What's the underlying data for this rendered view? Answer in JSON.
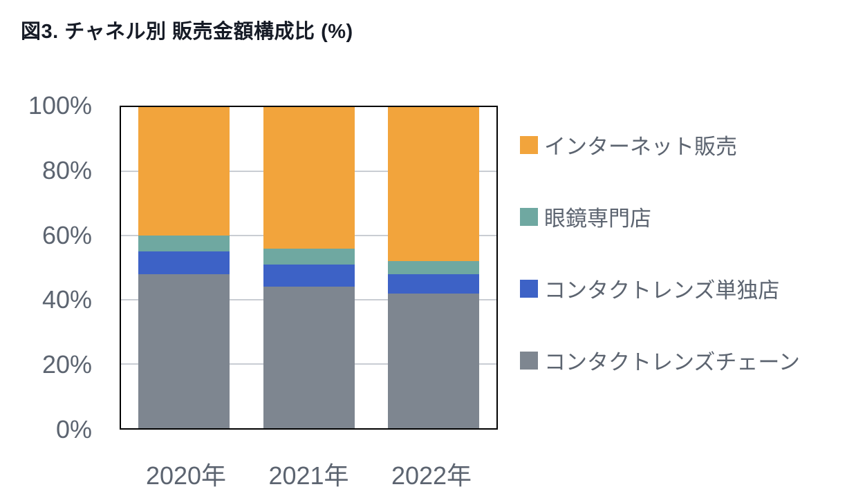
{
  "title": "図3. チャネル別 販売金額構成比 (%)",
  "chart_data": {
    "type": "bar",
    "stacked": true,
    "title": "図3. チャネル別 販売金額構成比 (%)",
    "categories": [
      "2020年",
      "2021年",
      "2022年"
    ],
    "series": [
      {
        "name": "コンタクトレンズチェーン",
        "color": "#7E8690",
        "values": [
          48,
          44,
          42
        ]
      },
      {
        "name": "コンタクトレンズ単独店",
        "color": "#3D62C6",
        "values": [
          7,
          7,
          6
        ]
      },
      {
        "name": "眼鏡専門店",
        "color": "#6FA8A1",
        "values": [
          5,
          5,
          4
        ]
      },
      {
        "name": "インターネット販売",
        "color": "#F2A43C",
        "values": [
          40,
          44,
          48
        ]
      }
    ],
    "ylim": [
      0,
      100
    ],
    "yticks_top_to_bottom": [
      "100%",
      "80%",
      "60%",
      "40%",
      "20%",
      "0%"
    ],
    "grid": true,
    "legend_position": "right",
    "legend_order_top_to_bottom": [
      "インターネット販売",
      "眼鏡専門店",
      "コンタクトレンズ単独店",
      "コンタクトレンズチェーン"
    ]
  },
  "colors": {
    "background": "#FFFFFF",
    "title_text": "#161B26",
    "axis_text": "#5C6470",
    "legend_text": "#5C6470",
    "gridline": "#C9CDD3",
    "plot_border": "#000000"
  }
}
